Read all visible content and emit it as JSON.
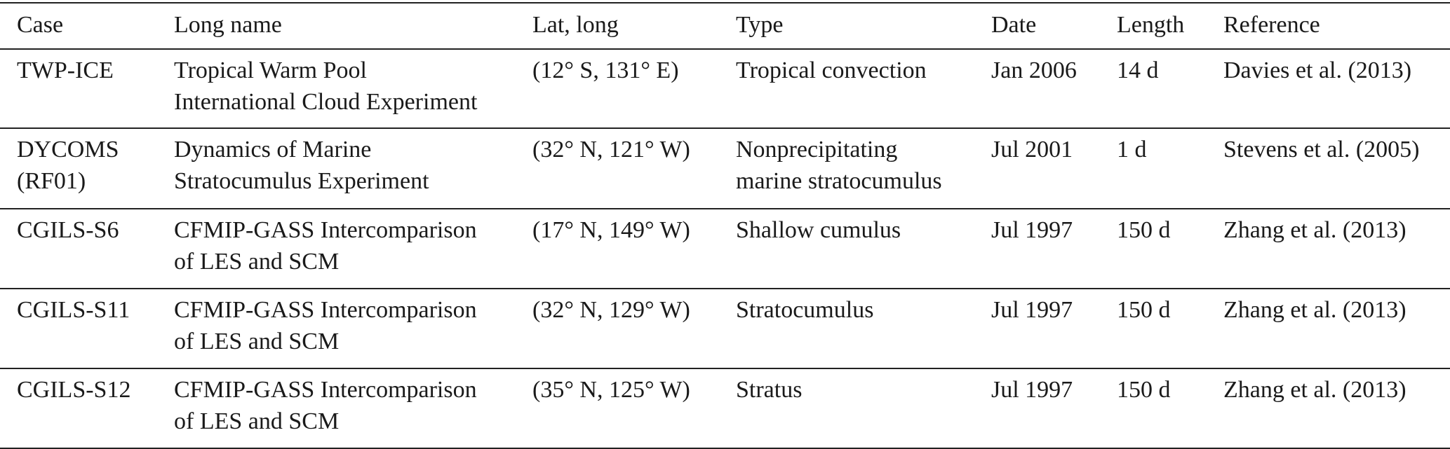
{
  "table": {
    "header": [
      "Case",
      "Long name",
      "Lat, long",
      "Type",
      "Date",
      "Length",
      "Reference"
    ],
    "rows": [
      [
        [
          "TWP-ICE"
        ],
        [
          "Tropical Warm Pool",
          "International Cloud Experiment"
        ],
        [
          "(12° S, 131° E)"
        ],
        [
          "Tropical convection"
        ],
        [
          "Jan 2006"
        ],
        [
          "14 d"
        ],
        [
          "Davies et al. (2013)"
        ]
      ],
      [
        [
          "DYCOMS",
          "(RF01)"
        ],
        [
          "Dynamics of Marine",
          "Stratocumulus Experiment"
        ],
        [
          "(32° N, 121° W)"
        ],
        [
          "Nonprecipitating",
          "marine stratocumulus"
        ],
        [
          "Jul 2001"
        ],
        [
          "1 d"
        ],
        [
          "Stevens et al. (2005)"
        ]
      ],
      [
        [
          "CGILS-S6"
        ],
        [
          "CFMIP-GASS Intercomparison",
          "of LES and SCM"
        ],
        [
          "(17° N, 149° W)"
        ],
        [
          "Shallow cumulus"
        ],
        [
          "Jul 1997"
        ],
        [
          "150 d"
        ],
        [
          "Zhang et al. (2013)"
        ]
      ],
      [
        [
          "CGILS-S11"
        ],
        [
          "CFMIP-GASS Intercomparison",
          "of LES and SCM"
        ],
        [
          "(32° N, 129° W)"
        ],
        [
          "Stratocumulus"
        ],
        [
          "Jul 1997"
        ],
        [
          "150 d"
        ],
        [
          "Zhang et al. (2013)"
        ]
      ],
      [
        [
          "CGILS-S12"
        ],
        [
          "CFMIP-GASS Intercomparison",
          "of LES and SCM"
        ],
        [
          "(35° N, 125° W)"
        ],
        [
          "Stratus"
        ],
        [
          "Jul 1997"
        ],
        [
          "150 d"
        ],
        [
          "Zhang et al. (2013)"
        ]
      ]
    ]
  }
}
